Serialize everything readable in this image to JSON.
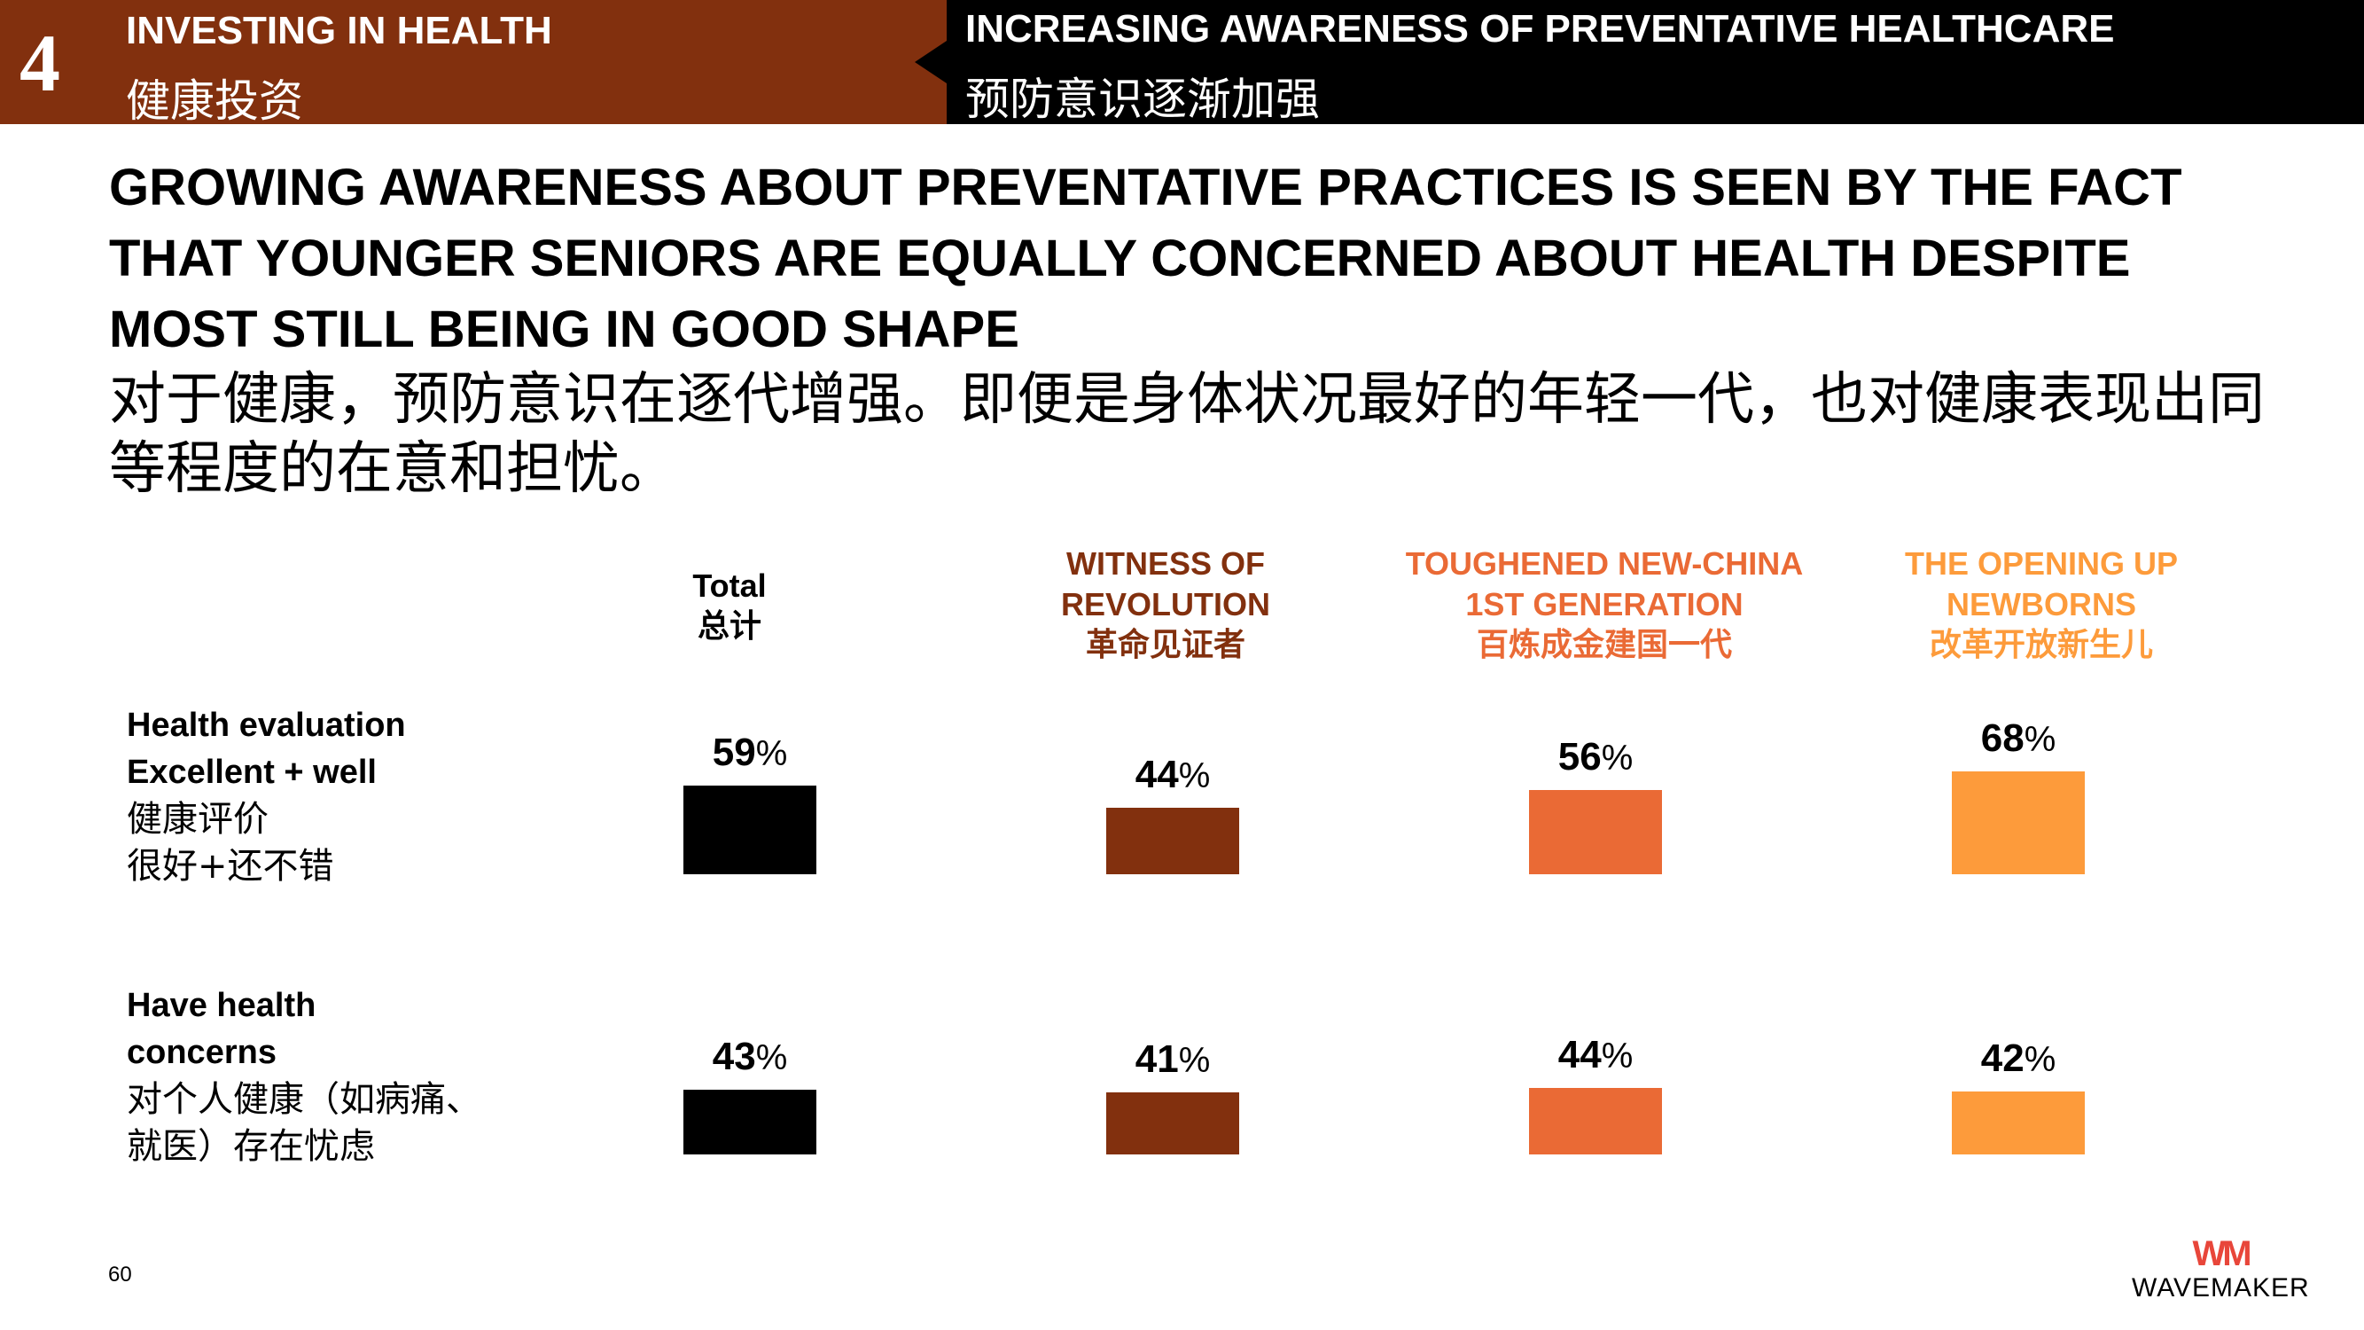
{
  "header": {
    "section_number": "4",
    "section_title_en": "INVESTING IN HEALTH",
    "section_title_zh": "健康投资",
    "topic_en": "INCREASING AWARENESS OF PREVENTATIVE HEALTHCARE",
    "topic_zh": "预防意识逐渐加强"
  },
  "headline": {
    "en": "GROWING AWARENESS ABOUT PREVENTATIVE PRACTICES IS SEEN BY THE FACT THAT YOUNGER SENIORS ARE EQUALLY CONCERNED ABOUT HEALTH DESPITE MOST STILL BEING IN GOOD SHAPE",
    "zh": "对于健康，预防意识在逐代增强。即便是身体状况最好的年轻一代，也对健康表现出同等程度的在意和担忧。"
  },
  "colors": {
    "header_brown": "#82300e",
    "total": "#000000",
    "witness": "#82300e",
    "toughened": "#ea6a35",
    "opening": "#fd9b3b"
  },
  "chart_data": {
    "type": "bar",
    "columns": [
      {
        "label_en": "Total",
        "label_zh": "总计",
        "color": "#000000"
      },
      {
        "label_en": "WITNESS OF REVOLUTION",
        "label_zh": "革命见证者",
        "color": "#82300e"
      },
      {
        "label_en": "TOUGHENED NEW-CHINA 1ST GENERATION",
        "label_zh": "百炼成金建国一代",
        "color": "#ea6a35"
      },
      {
        "label_en": "THE OPENING UP NEWBORNS",
        "label_zh": "改革开放新生儿",
        "color": "#fd9b3b"
      }
    ],
    "rows": [
      {
        "label_en": "Health evaluation Excellent + well",
        "label_zh_1": "健康评价",
        "label_zh_2": "很好+还不错",
        "values": [
          59,
          44,
          56,
          68
        ]
      },
      {
        "label_en": "Have health concerns",
        "label_zh_1": "对个人健康（如病痛、",
        "label_zh_2": "就医）存在忧虑",
        "values": [
          43,
          41,
          44,
          42
        ]
      }
    ],
    "unit": "%"
  },
  "footer": {
    "page_number": "60",
    "logo_mark": "WM",
    "logo_text": "WAVEMAKER"
  }
}
